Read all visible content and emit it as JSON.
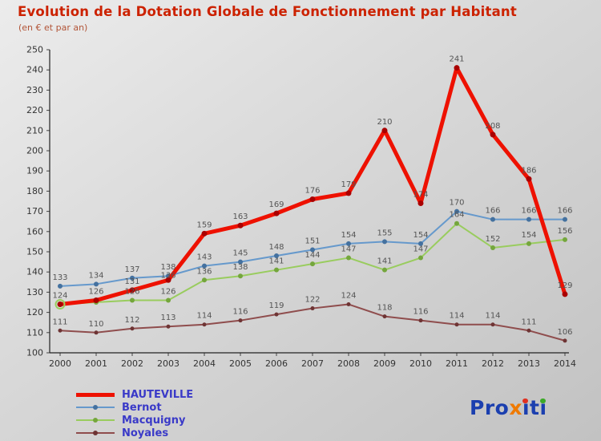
{
  "title": "Evolution de la Dotation Globale de Fonctionnement par Habitant",
  "subtitle": "(en € et par an)",
  "chart_data": {
    "type": "line",
    "x": [
      2000,
      2001,
      2002,
      2003,
      2004,
      2005,
      2006,
      2007,
      2008,
      2009,
      2010,
      2011,
      2012,
      2013,
      2014
    ],
    "ylim": [
      100,
      250
    ],
    "ytick_step": 10,
    "grid": false,
    "legend_position": "bottom-left",
    "label_color": "#555555",
    "series": [
      {
        "name": "HAUTEVILLE",
        "color": "#ee1100",
        "marker_color": "#aa0000",
        "line_width": 5,
        "marker_r": 3.5,
        "values": [
          124,
          126,
          131,
          136,
          159,
          163,
          169,
          176,
          179,
          210,
          174,
          241,
          208,
          186,
          129
        ]
      },
      {
        "name": "Bernot",
        "color": "#6699cc",
        "marker_color": "#44719f",
        "line_width": 2,
        "marker_r": 3,
        "values": [
          133,
          134,
          137,
          138,
          143,
          145,
          148,
          151,
          154,
          155,
          154,
          170,
          166,
          166,
          166
        ]
      },
      {
        "name": "Macquigny",
        "color": "#99cc5e",
        "marker_color": "#74a63c",
        "line_width": 2,
        "marker_r": 3,
        "values": [
          124,
          125,
          126,
          126,
          136,
          138,
          141,
          144,
          147,
          141,
          147,
          164,
          152,
          154,
          156
        ],
        "hide_labels": [
          0,
          1
        ]
      },
      {
        "name": "Noyales",
        "color": "#8f4d4d",
        "marker_color": "#6e3434",
        "line_width": 2,
        "marker_r": 2.5,
        "values": [
          111,
          110,
          112,
          113,
          114,
          116,
          119,
          122,
          124,
          118,
          116,
          114,
          114,
          111,
          106
        ]
      }
    ]
  },
  "legend": {
    "text_color": "#3a3ac8"
  },
  "logo": {
    "parts": [
      {
        "t": "Pro",
        "c": "#1b3faf"
      },
      {
        "t": "x",
        "c": "#ef7a00"
      },
      {
        "t": "i",
        "c": "#1b3faf",
        "dot": "#e03020"
      },
      {
        "t": "t",
        "c": "#1b3faf"
      },
      {
        "t": "i",
        "c": "#1b3faf",
        "dot": "#3caa28"
      }
    ]
  }
}
